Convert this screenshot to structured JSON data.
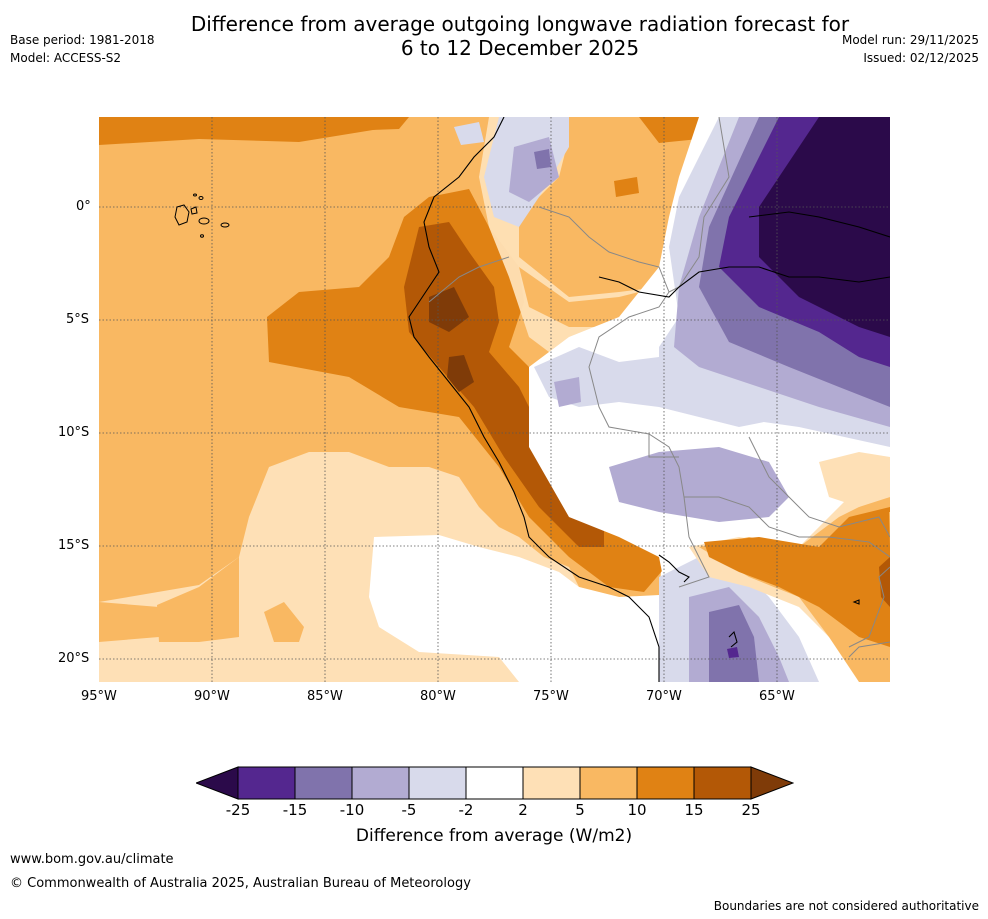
{
  "header": {
    "title_line1": "Difference from average outgoing longwave radiation forecast for",
    "title_line2": "6 to 12 December 2025",
    "base_period": "Base period: 1981-2018",
    "model": "Model: ACCESS-S2",
    "model_run": "Model run: 29/11/2025",
    "issued": "Issued: 02/12/2025"
  },
  "map": {
    "region": "South America west coast (Peru, Ecuador, Galapagos)",
    "lon_ticks": [
      "95°W",
      "90°W",
      "85°W",
      "80°W",
      "75°W",
      "70°W",
      "65°W"
    ],
    "lat_ticks": [
      "0°",
      "5°S",
      "10°S",
      "15°S",
      "20°S"
    ]
  },
  "colorbar": {
    "labels": [
      "-25",
      "-15",
      "-10",
      "-5",
      "-2",
      "2",
      "5",
      "10",
      "15",
      "25"
    ],
    "title": "Difference from average (W/m2)",
    "colors": {
      "lt_-25": "#2b0a4a",
      "-25_-15": "#54278f",
      "-15_-10": "#8073ac",
      "-10_-5": "#b2abd2",
      "-5_-2": "#d8daeb",
      "-2_2": "#ffffff",
      "2_5": "#fee0b6",
      "5_10": "#f9b862",
      "10_15": "#e08214",
      "15_25": "#b35806",
      "gt_25": "#7f3b08"
    }
  },
  "footer": {
    "website": "www.bom.gov.au/climate",
    "copyright": "© Commonwealth of Australia 2025, Australian Bureau of Meteorology",
    "disclaimer": "Boundaries are not considered authoritative"
  }
}
